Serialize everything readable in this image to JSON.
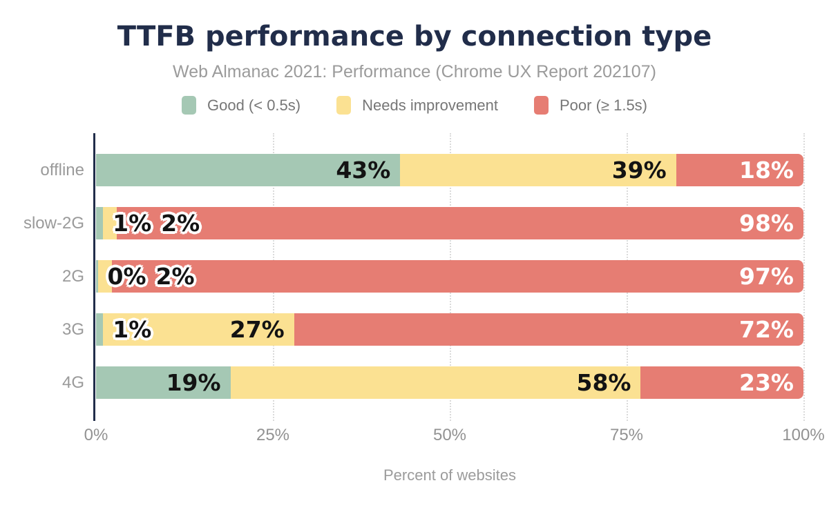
{
  "header": {
    "title": "TTFB performance by connection type",
    "subtitle": "Web Almanac 2021: Performance (Chrome UX Report 202107)"
  },
  "chart_data": {
    "type": "bar",
    "orientation": "horizontal",
    "stacked": true,
    "title": "TTFB performance by connection type",
    "subtitle": "Web Almanac 2021: Performance (Chrome UX Report 202107)",
    "categories": [
      "offline",
      "slow-2G",
      "2G",
      "3G",
      "4G"
    ],
    "series": [
      {
        "name": "Good (< 0.5s)",
        "key": "good",
        "color": "#a5c8b4",
        "values": [
          43,
          1,
          0,
          1,
          19
        ]
      },
      {
        "name": "Needs improvement",
        "key": "needs-improvement",
        "color": "#fbe192",
        "values": [
          39,
          2,
          2,
          27,
          58
        ]
      },
      {
        "name": "Poor (≥ 1.5s)",
        "key": "poor",
        "color": "#e67d73",
        "values": [
          18,
          98,
          97,
          72,
          23
        ]
      }
    ],
    "value_suffix": "%",
    "xlabel": "Percent of websites",
    "x_ticks": [
      {
        "label": "0%",
        "pct": 0
      },
      {
        "label": "25%",
        "pct": 25
      },
      {
        "label": "50%",
        "pct": 50
      },
      {
        "label": "75%",
        "pct": 75
      },
      {
        "label": "100%",
        "pct": 100
      }
    ],
    "xlim": [
      0,
      100
    ],
    "grid": "vertical-dotted",
    "legend_position": "top",
    "colors": {
      "axis": "#212d4a",
      "title": "#212d4a",
      "muted_text": "#9b9b9b",
      "good": "#a5c8b4",
      "needs_improvement": "#fbe192",
      "poor": "#e67d73"
    }
  }
}
